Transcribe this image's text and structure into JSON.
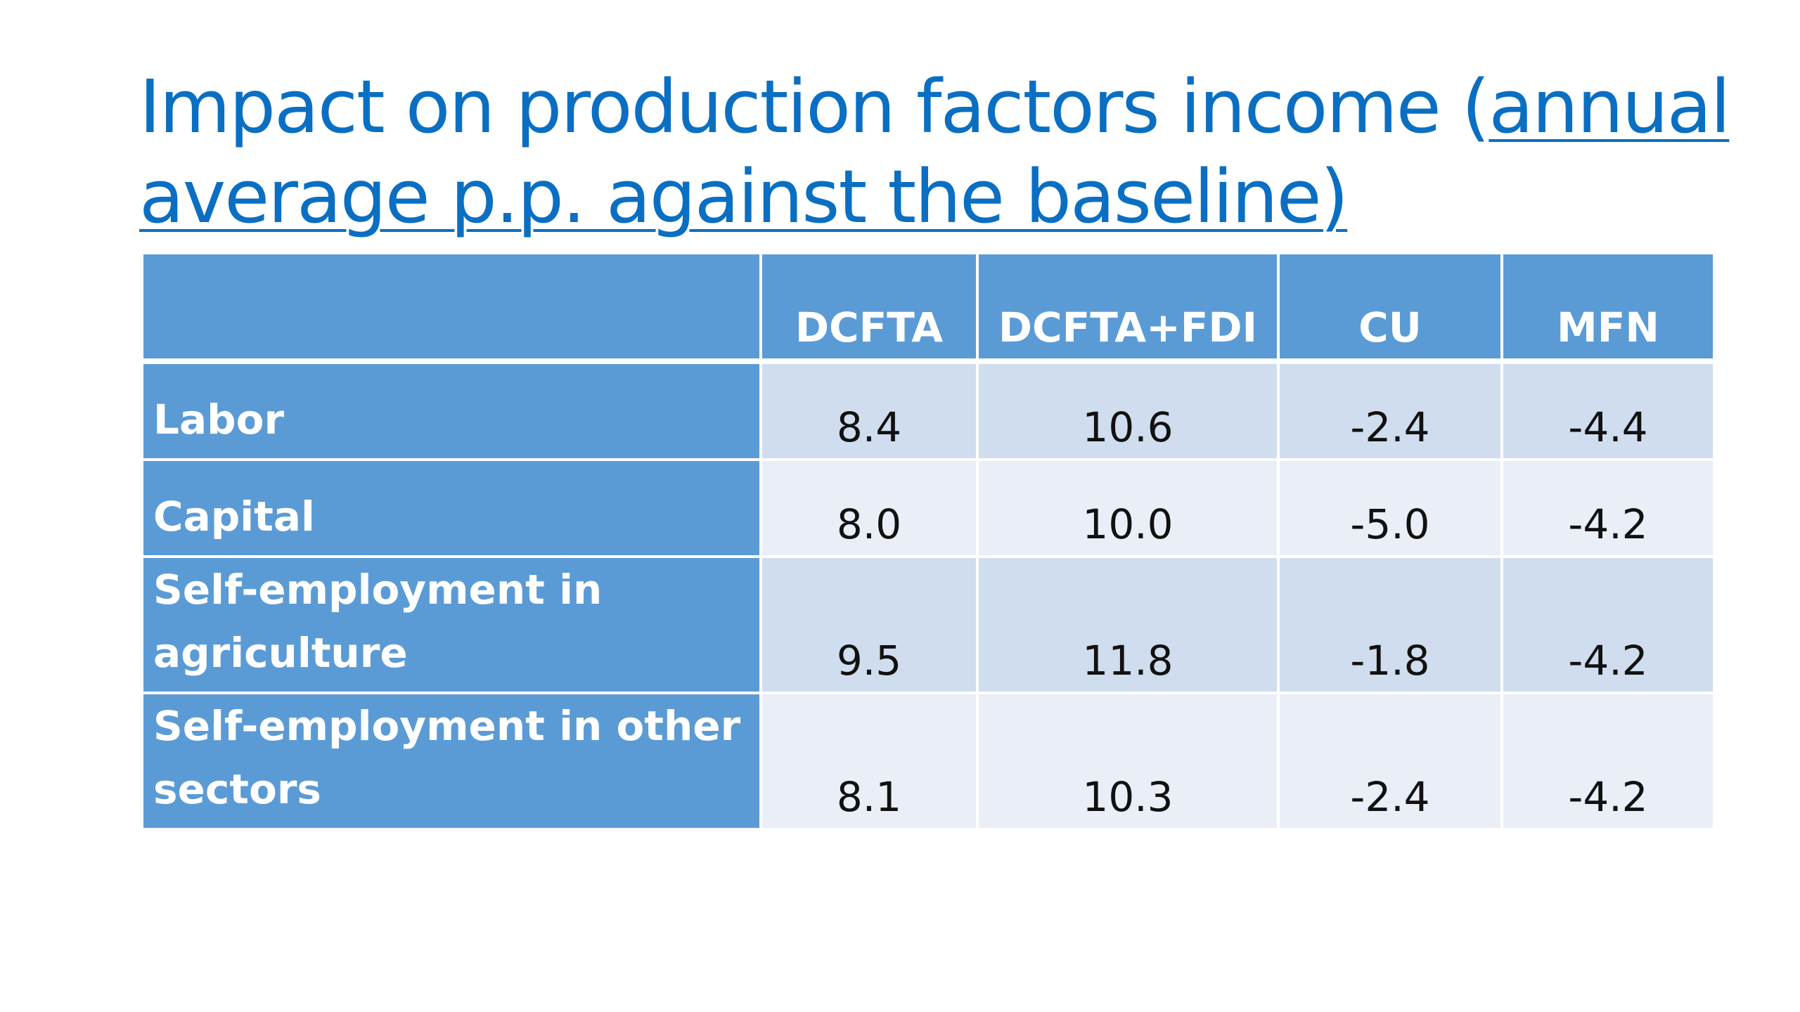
{
  "title": {
    "text_plain": "Impact on production factors income (",
    "text_link": "annual average p.p. against the baseline)"
  },
  "table": {
    "columns": [
      "",
      "DCFTA",
      "DCFTA+FDI",
      "CU",
      "MFN"
    ],
    "rows": [
      {
        "label": "Labor",
        "values": [
          "8.4",
          "10.6",
          "-2.4",
          "-4.4"
        ]
      },
      {
        "label": "Capital",
        "values": [
          "8.0",
          "10.0",
          "-5.0",
          "-4.2"
        ]
      },
      {
        "label": "Self-employment in agriculture",
        "values": [
          "9.5",
          "11.8",
          "-1.8",
          "-4.2"
        ]
      },
      {
        "label": "Self-employment in other sectors",
        "values": [
          "8.1",
          "10.3",
          "-2.4",
          "-4.2"
        ]
      }
    ]
  },
  "colors": {
    "title": "#0a6fc2",
    "header_fill": "#5b9bd5",
    "row_odd_fill": "#cfddee",
    "row_even_fill": "#e9eef7"
  }
}
